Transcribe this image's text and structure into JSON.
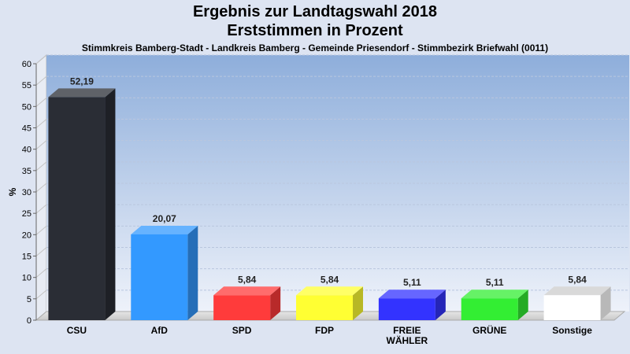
{
  "chart_data": {
    "type": "bar",
    "title": "Ergebnis zur Landtagswahl 2018",
    "subtitle": "Erststimmen in Prozent",
    "caption": "Stimmkreis Bamberg-Stadt - Landkreis Bamberg - Gemeinde Priesendorf - Stimmbezirk Briefwahl (0011)",
    "ylabel": "%",
    "ylim": [
      0,
      60
    ],
    "ytick_step": 5,
    "categories": [
      "CSU",
      "AfD",
      "SPD",
      "FDP",
      "FREIE WÄHLER",
      "GRÜNE",
      "Sonstige"
    ],
    "category_lines": [
      [
        "CSU"
      ],
      [
        "AfD"
      ],
      [
        "SPD"
      ],
      [
        "FDP"
      ],
      [
        "FREIE",
        "WÄHLER"
      ],
      [
        "GRÜNE"
      ],
      [
        "Sonstige"
      ]
    ],
    "values": [
      52.19,
      20.07,
      5.84,
      5.84,
      5.11,
      5.11,
      5.84
    ],
    "value_labels": [
      "52,19",
      "20,07",
      "5,84",
      "5,84",
      "5,11",
      "5,11",
      "5,84"
    ],
    "colors": [
      "#2a2d35",
      "#3399ff",
      "#ff3b3b",
      "#ffff33",
      "#3333ff",
      "#33ee33",
      "#ffffff"
    ],
    "grid": true,
    "legend": "none"
  }
}
